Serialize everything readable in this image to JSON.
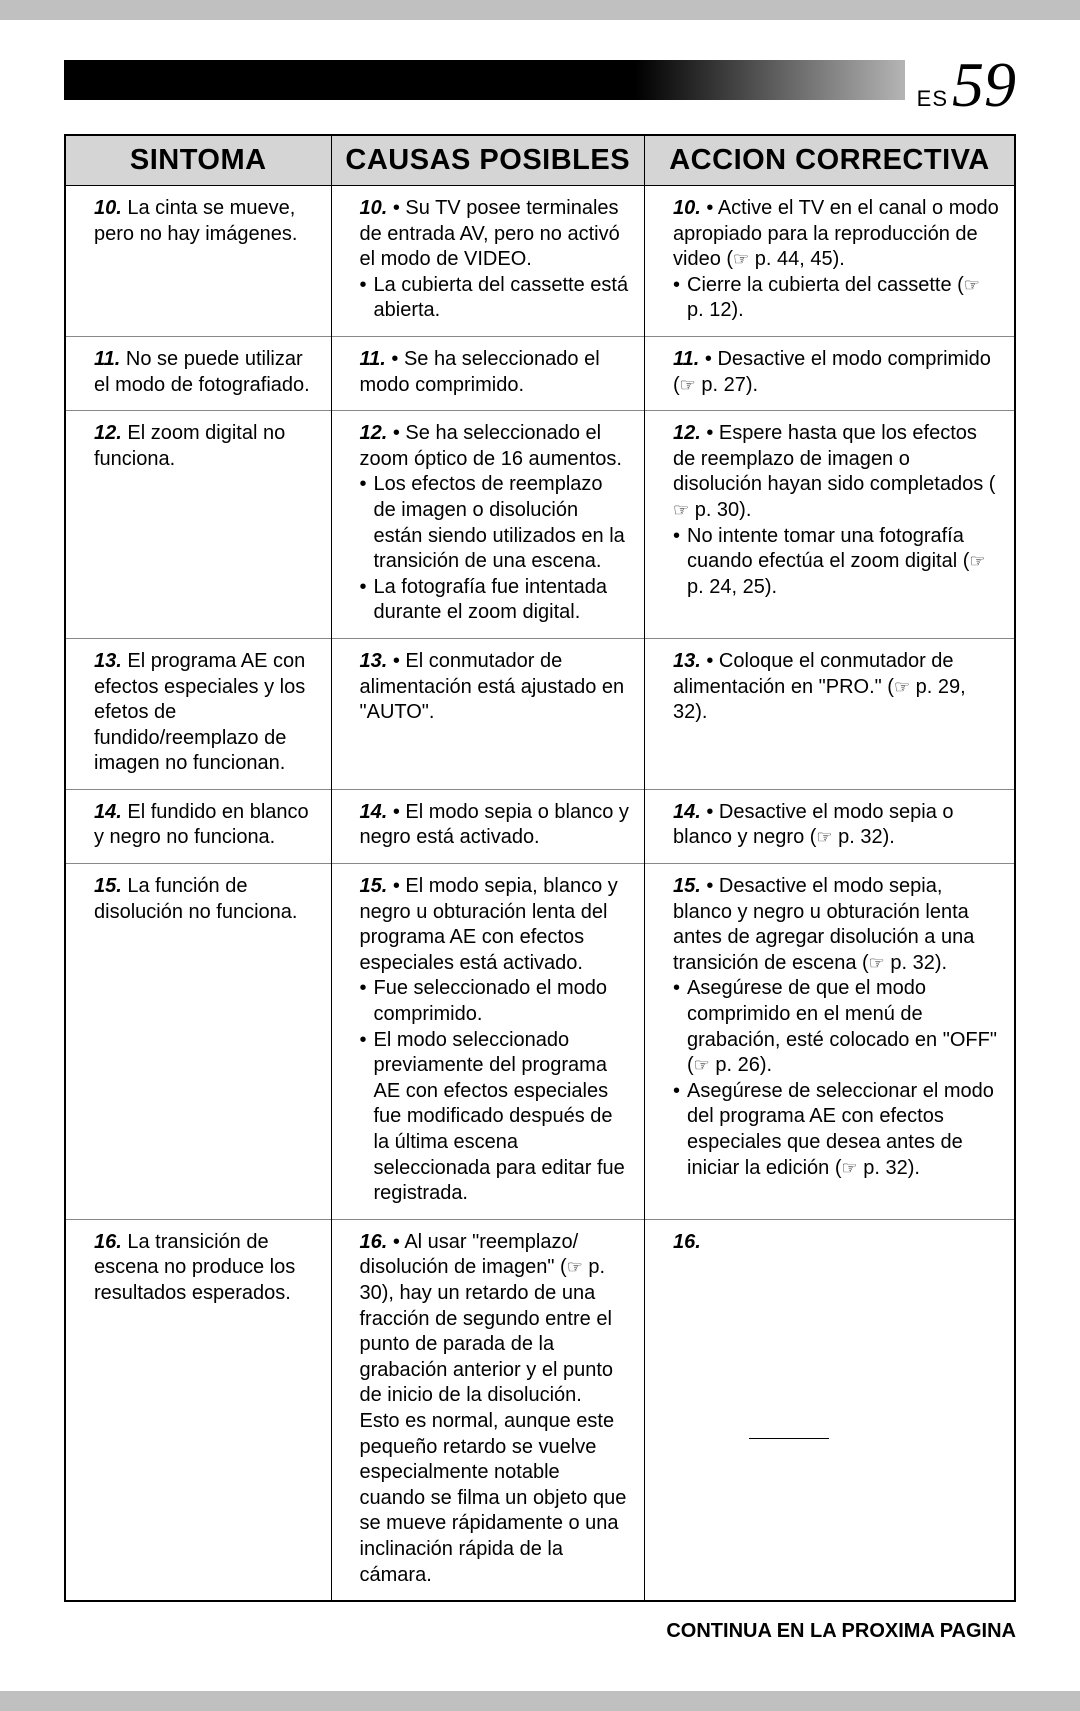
{
  "header": {
    "lang": "ES",
    "pagenum": "59"
  },
  "columns": {
    "c1": "SINTOMA",
    "c2": "CAUSAS POSIBLES",
    "c3": "ACCION CORRECTIVA"
  },
  "ref_icon": "☞",
  "rows": [
    {
      "n": "10.",
      "symptom": "La cinta se mueve, pero no hay imágenes.",
      "causes": [
        "Su TV posee terminales de entrada AV, pero no activó el modo de VIDEO.",
        "La cubierta del cassette está abierta."
      ],
      "actions": [
        "Active el TV en el canal o modo apropiado para la reproducción de video (☞ p. 44, 45).",
        "Cierre la cubierta del cassette (☞ p. 12)."
      ]
    },
    {
      "n": "11.",
      "symptom": "No se puede utilizar el modo de fotografiado.",
      "causes": [
        "Se ha seleccionado el modo comprimido."
      ],
      "actions": [
        "Desactive el modo comprimido (☞ p. 27)."
      ]
    },
    {
      "n": "12.",
      "symptom": "El zoom digital no funciona.",
      "causes": [
        "Se ha seleccionado el zoom óptico de 16 aumentos.",
        "Los efectos de reemplazo de imagen o disolución están siendo utilizados en la transición de una escena.",
        "La fotografía fue intentada durante el zoom digital."
      ],
      "actions": [
        "Espere hasta que los efectos de reemplazo de imagen o disolución hayan sido completados (☞ p. 30).",
        "No intente tomar una fotografía cuando efectúa el zoom digital (☞ p. 24, 25)."
      ]
    },
    {
      "n": "13.",
      "symptom": "El programa AE con efectos especiales y los efetos de fundido/reemplazo de imagen no funcionan.",
      "causes": [
        "El conmutador de alimentación está ajustado en \"AUTO\"."
      ],
      "actions": [
        "Coloque el conmutador de alimentación en \"PRO.\" (☞ p. 29, 32)."
      ]
    },
    {
      "n": "14.",
      "symptom": "El fundido en blanco y negro no funciona.",
      "causes": [
        "El modo sepia o blanco y negro está activado."
      ],
      "actions": [
        "Desactive el modo sepia o blanco y negro (☞ p. 32)."
      ]
    },
    {
      "n": "15.",
      "symptom": "La función de disolución no funciona.",
      "causes": [
        "El modo sepia, blanco y negro u obturación lenta del programa AE con efectos especiales está activado.",
        "Fue seleccionado el modo comprimido.",
        "El modo seleccionado previamente del programa AE con efectos especiales fue modificado después de la última escena seleccionada para editar fue registrada."
      ],
      "actions": [
        "Desactive el modo sepia, blanco y negro u obturación lenta antes de agregar disolución a una transición de escena (☞ p. 32).",
        "Asegúrese de que el modo comprimido en el menú de grabación, esté colocado en \"OFF\" (☞ p. 26).",
        "Asegúrese de seleccionar el modo del programa AE con efectos especiales que desea antes de iniciar la edición (☞ p. 32)."
      ]
    },
    {
      "n": "16.",
      "symptom": "La transición de escena no produce los resultados esperados.",
      "causes": [
        "Al usar \"reemplazo/ disolución de imagen\" (☞ p. 30), hay un retardo de una fracción de segundo entre el punto de parada de la grabación anterior y el punto de inicio de la disolución.\nEsto es normal, aunque este pequeño retardo se vuelve especialmente notable cuando se filma un objeto que se mueve rápidamente o una inclinación rápida de la cámara."
      ],
      "actions_blank": true
    }
  ],
  "continue": "CONTINUA EN LA PROXIMA PAGINA"
}
